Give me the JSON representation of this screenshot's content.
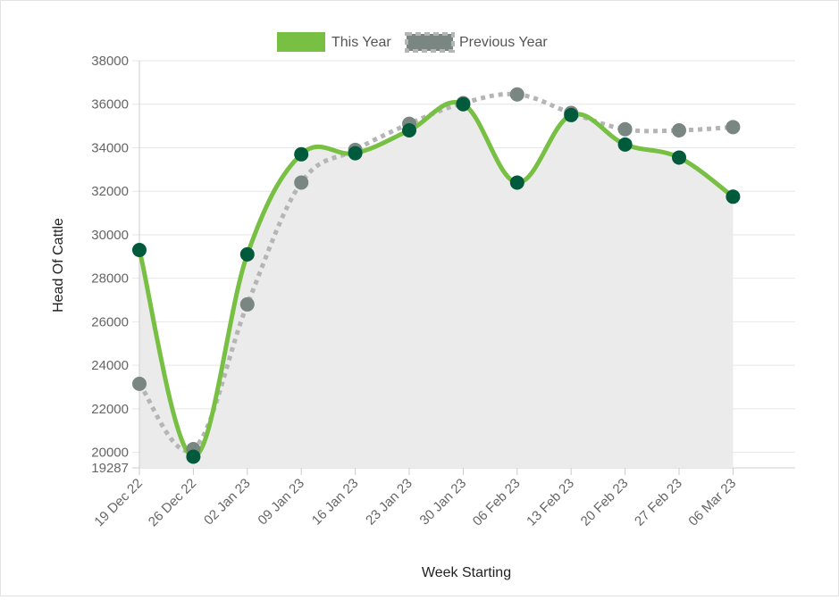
{
  "chart_data": {
    "type": "line",
    "xlabel": "Week Starting",
    "ylabel": "Head Of Cattle",
    "ylim": [
      19287,
      38000
    ],
    "y_ticks": [
      "38000",
      "36000",
      "34000",
      "32000",
      "30000",
      "28000",
      "26000",
      "24000",
      "22000",
      "20000",
      "19287"
    ],
    "y_tick_values": [
      38000,
      36000,
      34000,
      32000,
      30000,
      28000,
      26000,
      24000,
      22000,
      20000,
      19287
    ],
    "categories": [
      "19 Dec 22",
      "26 Dec 22",
      "02 Jan 23",
      "09 Jan 23",
      "16 Jan 23",
      "23 Jan 23",
      "30 Jan 23",
      "06 Feb 23",
      "13 Feb 23",
      "20 Feb 23",
      "27 Feb 23",
      "06 Mar 23"
    ],
    "grid": true,
    "legend_position": "top-center",
    "series": [
      {
        "name": "This Year",
        "color": "#77c043",
        "marker_color": "#005a3c",
        "fill": "#ebebeb",
        "values": [
          29300,
          19800,
          29100,
          33700,
          33750,
          34800,
          36000,
          32400,
          35500,
          34150,
          33550,
          31750
        ]
      },
      {
        "name": "Previous Year",
        "color": "#b5b5b5",
        "marker_color": "#7a8681",
        "dashed": true,
        "values": [
          23150,
          20150,
          26800,
          32400,
          33900,
          35100,
          36050,
          36450,
          35600,
          34850,
          34800,
          34950
        ]
      }
    ]
  }
}
